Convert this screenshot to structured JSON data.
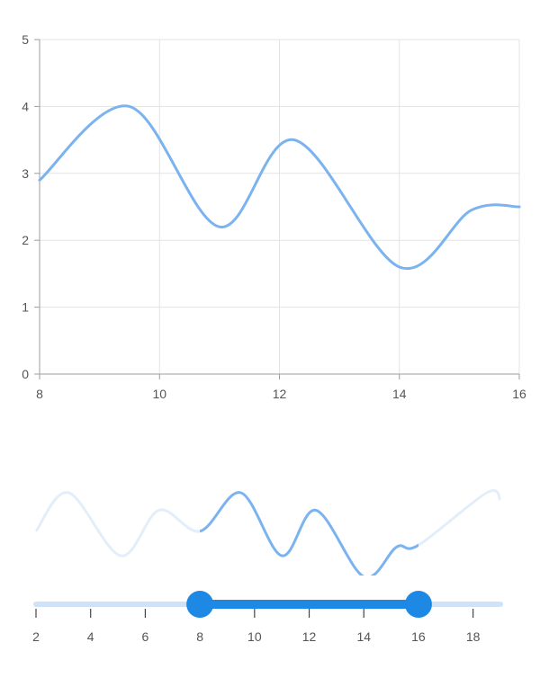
{
  "colors": {
    "series": "#7ab3ef",
    "series_faded": "#e3eefa",
    "grid": "#e3e3e3",
    "axis": "#9e9e9e",
    "track": "#cfe3f8",
    "active_track": "#1e88e5",
    "thumb": "#1e88e5"
  },
  "chart_data": [
    {
      "type": "line",
      "curve": "spline",
      "grid": true,
      "xlim": [
        8,
        16
      ],
      "ylim": [
        0,
        5
      ],
      "xticks": [
        "8",
        "10",
        "12",
        "14",
        "16"
      ],
      "yticks": [
        "0",
        "1",
        "2",
        "3",
        "4",
        "5"
      ],
      "x": [
        8,
        9.5,
        11,
        12.25,
        14,
        15.2,
        16
      ],
      "y": [
        2.9,
        4.0,
        2.2,
        3.5,
        1.6,
        2.45,
        2.5
      ]
    },
    {
      "type": "line",
      "curve": "spline",
      "role": "range-selector-preview",
      "xlim": [
        2,
        19
      ],
      "x": [
        2,
        3.2,
        5.1,
        6.5,
        8,
        9.5,
        11,
        12.25,
        14,
        15.2,
        16,
        18.5,
        19
      ],
      "y": [
        2.9,
        4.0,
        2.2,
        3.5,
        2.9,
        4.0,
        2.2,
        3.5,
        1.6,
        2.45,
        2.5,
        4.0,
        3.8
      ],
      "selected_range": [
        8,
        16
      ],
      "xticks": [
        "2",
        "4",
        "6",
        "8",
        "10",
        "12",
        "14",
        "16",
        "18"
      ]
    }
  ]
}
